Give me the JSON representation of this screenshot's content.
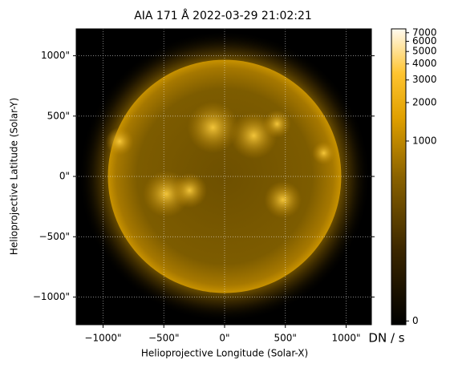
{
  "chart_data": {
    "type": "image",
    "title": "AIA 171 Å 2022-03-29 21:02:21",
    "xlabel": "Helioprojective Longitude (Solar-X)",
    "ylabel": "Helioprojective Latitude (Solar-Y)",
    "xlim": [
      -1221,
      1208
    ],
    "ylim": [
      -1229,
      1223
    ],
    "xticks": [
      {
        "value": -1000,
        "label": "−1000\""
      },
      {
        "value": -500,
        "label": "−500\""
      },
      {
        "value": 0,
        "label": "0\""
      },
      {
        "value": 500,
        "label": "500\""
      },
      {
        "value": 1000,
        "label": "1000\""
      }
    ],
    "yticks": [
      {
        "value": -1000,
        "label": "−1000\""
      },
      {
        "value": -500,
        "label": "−500\""
      },
      {
        "value": 0,
        "label": "0\""
      },
      {
        "value": 500,
        "label": "500\""
      },
      {
        "value": 1000,
        "label": "1000\""
      }
    ],
    "grid": true,
    "colorbar": {
      "label": "DN / s",
      "lim": [
        -5,
        7500
      ],
      "ticks": [
        0,
        1000,
        2000,
        3000,
        4000,
        5000,
        6000,
        7000
      ],
      "stretch": "asinh",
      "stretch_a": 0.01
    }
  }
}
